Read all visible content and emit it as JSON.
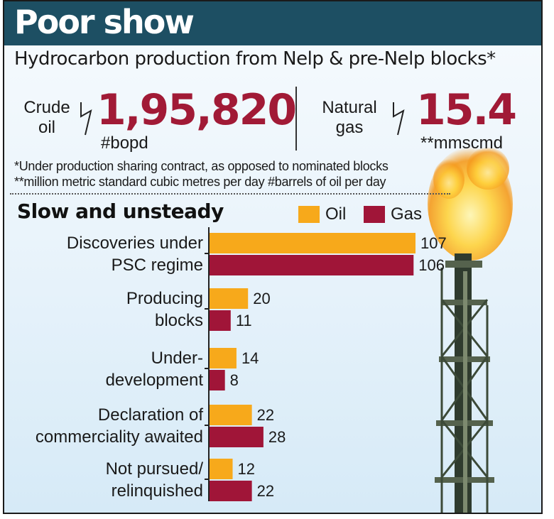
{
  "header": {
    "title": "Poor show",
    "subtitle": "Hydrocarbon production from Nelp & pre-Nelp blocks*"
  },
  "stats": {
    "crude": {
      "label": "Crude oil",
      "value": "1,95,820",
      "unit": "#bopd"
    },
    "gas": {
      "label": "Natural gas",
      "value": "15.4",
      "unit": "**mmscmd"
    }
  },
  "notes": {
    "line1": "*Under production sharing contract, as opposed to nominated blocks",
    "line2": "**million metric standard cubic metres per day #barrels of oil per day"
  },
  "colors": {
    "oil": "#f7a91b",
    "gas": "#a01538",
    "banner": "#1d4f63",
    "accent": "#a11a36"
  },
  "chart_data": {
    "type": "bar",
    "orientation": "horizontal",
    "title": "Slow and unsteady",
    "legend": "top-right",
    "grid": false,
    "xlim": [
      0,
      110
    ],
    "categories": [
      [
        "Discoveries under",
        "PSC regime"
      ],
      [
        "Producing",
        "blocks"
      ],
      [
        "Under-",
        "development"
      ],
      [
        "Declaration of",
        "commerciality awaited"
      ],
      [
        "Not pursued/",
        "relinquished"
      ]
    ],
    "series": [
      {
        "name": "Oil",
        "color": "#f7a91b",
        "values": [
          107,
          20,
          14,
          22,
          12
        ]
      },
      {
        "name": "Gas",
        "color": "#a01538",
        "values": [
          106,
          11,
          8,
          28,
          22
        ]
      }
    ]
  }
}
